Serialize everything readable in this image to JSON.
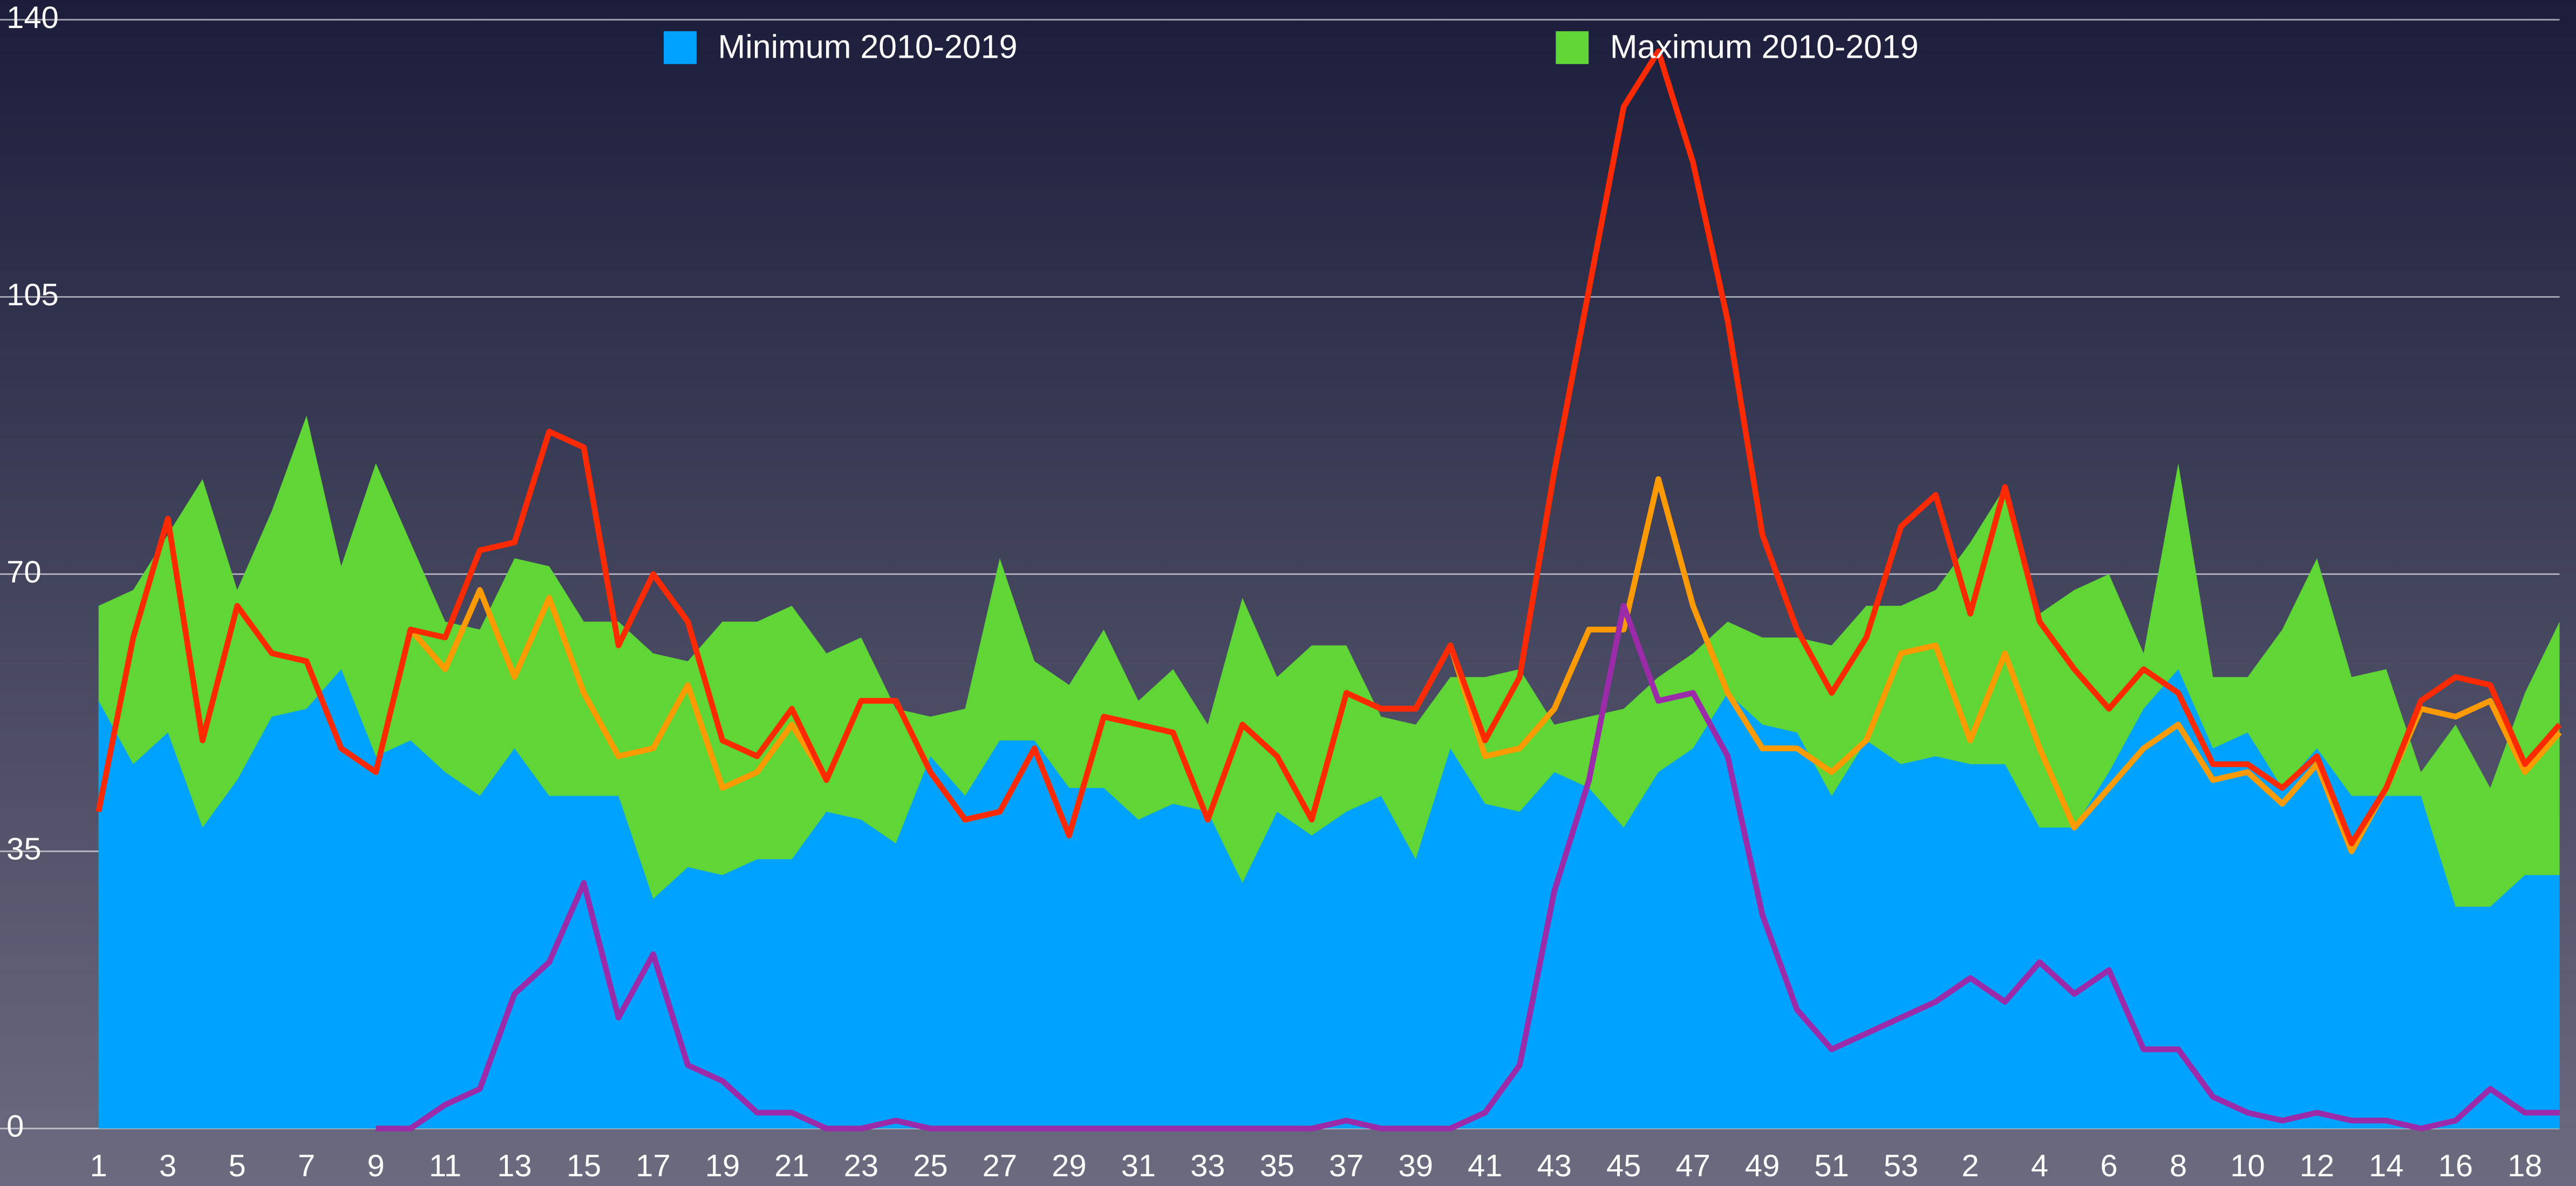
{
  "chart_data": {
    "type": "line",
    "categories": [
      "1",
      null,
      "3",
      null,
      "5",
      null,
      "7",
      null,
      "9",
      null,
      "11",
      null,
      "13",
      null,
      "15",
      null,
      "17",
      null,
      "19",
      null,
      "21",
      null,
      "23",
      null,
      "25",
      null,
      "27",
      null,
      "29",
      null,
      "31",
      null,
      "33",
      null,
      "35",
      null,
      "37",
      null,
      "39",
      null,
      "41",
      null,
      "43",
      null,
      "45",
      null,
      "47",
      null,
      "49",
      null,
      "51",
      null,
      "53",
      null,
      "2",
      null,
      "4",
      null,
      "6",
      null,
      "8",
      null,
      "10",
      null,
      "12",
      null,
      "14",
      null,
      "16",
      null,
      "18",
      null
    ],
    "ylim": [
      0,
      140
    ],
    "yticks": [
      0,
      35,
      70,
      105,
      140
    ],
    "grid": true,
    "legend": "top",
    "series": [
      {
        "name": "Maximum 2010-2019",
        "color": "#5fd635",
        "fill": "area",
        "values": [
          66,
          68,
          75,
          82,
          68,
          78,
          90,
          71,
          84,
          74,
          64,
          63,
          72,
          71,
          64,
          64,
          60,
          59,
          64,
          64,
          66,
          60,
          62,
          53,
          52,
          53,
          72,
          59,
          56,
          63,
          54,
          58,
          51,
          67,
          57,
          61,
          61,
          52,
          51,
          57,
          57,
          58,
          51,
          52,
          53,
          57,
          60,
          64,
          62,
          62,
          61,
          66,
          66,
          68,
          74,
          81,
          65,
          68,
          70,
          60,
          84,
          57,
          57,
          63,
          72,
          57,
          58,
          45,
          51,
          43,
          55,
          64
        ]
      },
      {
        "name": "Minimum 2010-2019",
        "color": "#00a2ff",
        "fill": "area",
        "values": [
          54,
          46,
          50,
          38,
          44,
          52,
          53,
          58,
          47,
          49,
          45,
          42,
          48,
          42,
          42,
          42,
          29,
          33,
          32,
          34,
          34,
          40,
          39,
          36,
          47,
          42,
          49,
          49,
          43,
          43,
          39,
          41,
          40,
          31,
          40,
          37,
          40,
          42,
          34,
          48,
          41,
          40,
          45,
          43,
          38,
          45,
          48,
          55,
          51,
          50,
          42,
          49,
          46,
          47,
          46,
          46,
          38,
          38,
          45,
          53,
          58,
          48,
          50,
          43,
          48,
          42,
          42,
          42,
          28,
          28,
          32,
          32
        ]
      },
      {
        "color": "#ff9a00",
        "values": [
          null,
          null,
          null,
          null,
          null,
          null,
          null,
          null,
          null,
          63,
          58,
          68,
          57,
          67,
          55,
          47,
          48,
          56,
          43,
          45,
          51,
          44,
          54,
          54,
          45,
          39,
          40,
          48,
          37,
          52,
          51,
          50,
          39,
          51,
          47,
          39,
          55,
          53,
          53,
          61,
          47,
          48,
          53,
          63,
          63,
          82,
          66,
          55,
          48,
          48,
          45,
          49,
          60,
          61,
          49,
          60,
          48,
          38,
          43,
          48,
          51,
          44,
          45,
          41,
          46,
          35,
          43,
          53,
          52,
          54,
          45,
          50
        ]
      },
      {
        "color": "#ff2a00",
        "values": [
          40,
          62,
          77,
          49,
          66,
          60,
          59,
          48,
          45,
          63,
          62,
          73,
          74,
          88,
          86,
          61,
          70,
          64,
          49,
          47,
          53,
          44,
          54,
          54,
          45,
          39,
          40,
          48,
          37,
          52,
          51,
          50,
          39,
          51,
          47,
          39,
          55,
          53,
          53,
          61,
          49,
          57,
          83,
          106,
          129,
          136,
          122,
          102,
          75,
          63,
          55,
          62,
          76,
          80,
          65,
          81,
          64,
          58,
          53,
          58,
          55,
          46,
          46,
          43,
          47,
          36,
          43,
          54,
          57,
          56,
          46,
          51
        ]
      },
      {
        "color": "#9b2ba8",
        "values": [
          null,
          null,
          null,
          null,
          null,
          null,
          null,
          null,
          0,
          0,
          3,
          5,
          17,
          21,
          31,
          14,
          22,
          8,
          6,
          2,
          2,
          0,
          0,
          1,
          0,
          0,
          0,
          0,
          0,
          0,
          0,
          0,
          0,
          0,
          0,
          0,
          1,
          0,
          0,
          0,
          2,
          8,
          30,
          44,
          66,
          54,
          55,
          47,
          27,
          15,
          10,
          12,
          14,
          16,
          19,
          16,
          21,
          17,
          20,
          10,
          10,
          4,
          2,
          1,
          2,
          1,
          1,
          0,
          1,
          5,
          2,
          2
        ]
      }
    ]
  }
}
